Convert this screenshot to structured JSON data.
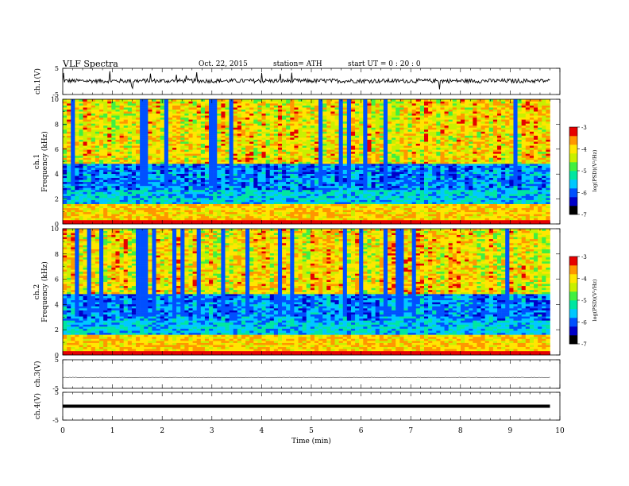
{
  "header": {
    "title": "VLF  Spectra",
    "date": "Oct. 22, 2015",
    "station": "station= ATH",
    "start": "start  UT  =   0  : 20 : 0"
  },
  "chart_data": {
    "type": "heatmap",
    "title": "VLF  Spectra",
    "xlabel": "Time  (min)",
    "xlim": [
      0,
      10
    ],
    "xticks": [
      "0",
      "1",
      "2",
      "3",
      "4",
      "5",
      "6",
      "7",
      "8",
      "9",
      "10"
    ],
    "panels": [
      {
        "kind": "waveform",
        "ylabel": "ch.1(V)",
        "ylim": [
          -5,
          5
        ],
        "yticks": [
          "5",
          "-5"
        ],
        "baseline": 0.2
      },
      {
        "kind": "spectrogram",
        "ylabel": "Frequency  (kHz)",
        "channel": "ch.1",
        "ylim": [
          0,
          10
        ],
        "yticks": [
          "0",
          "2",
          "4",
          "6",
          "8",
          "10"
        ],
        "colorbar": {
          "label": "log(PSD)(V²/Hz)",
          "range": [
            -7,
            -3
          ],
          "ticks": [
            "-3",
            "-4",
            "-5",
            "-6",
            "-7"
          ]
        }
      },
      {
        "kind": "spectrogram",
        "ylabel": "Frequency  (kHz)",
        "channel": "ch.2",
        "ylim": [
          0,
          10
        ],
        "yticks": [
          "0",
          "2",
          "4",
          "6",
          "8",
          "10"
        ],
        "colorbar": {
          "label": "log(PSD)(V²/Hz)",
          "range": [
            -7,
            -3
          ],
          "ticks": [
            "-3",
            "-4",
            "-5",
            "-6",
            "-7"
          ]
        }
      },
      {
        "kind": "waveform",
        "ylabel": "ch.3(V)",
        "ylim": [
          -5,
          5
        ],
        "yticks": [
          "5",
          "-5"
        ],
        "baseline": -1.2
      },
      {
        "kind": "waveform",
        "ylabel": "ch.4(V)",
        "ylim": [
          -5,
          5
        ],
        "yticks": [
          "5",
          "-5"
        ],
        "baseline": 0
      }
    ],
    "data_end_min": 9.8,
    "colormap": [
      "#000000",
      "#0000c8",
      "#0050ff",
      "#00c8ff",
      "#00e6a0",
      "#40f040",
      "#c8f000",
      "#ffe600",
      "#ff9600",
      "#e60000"
    ]
  }
}
